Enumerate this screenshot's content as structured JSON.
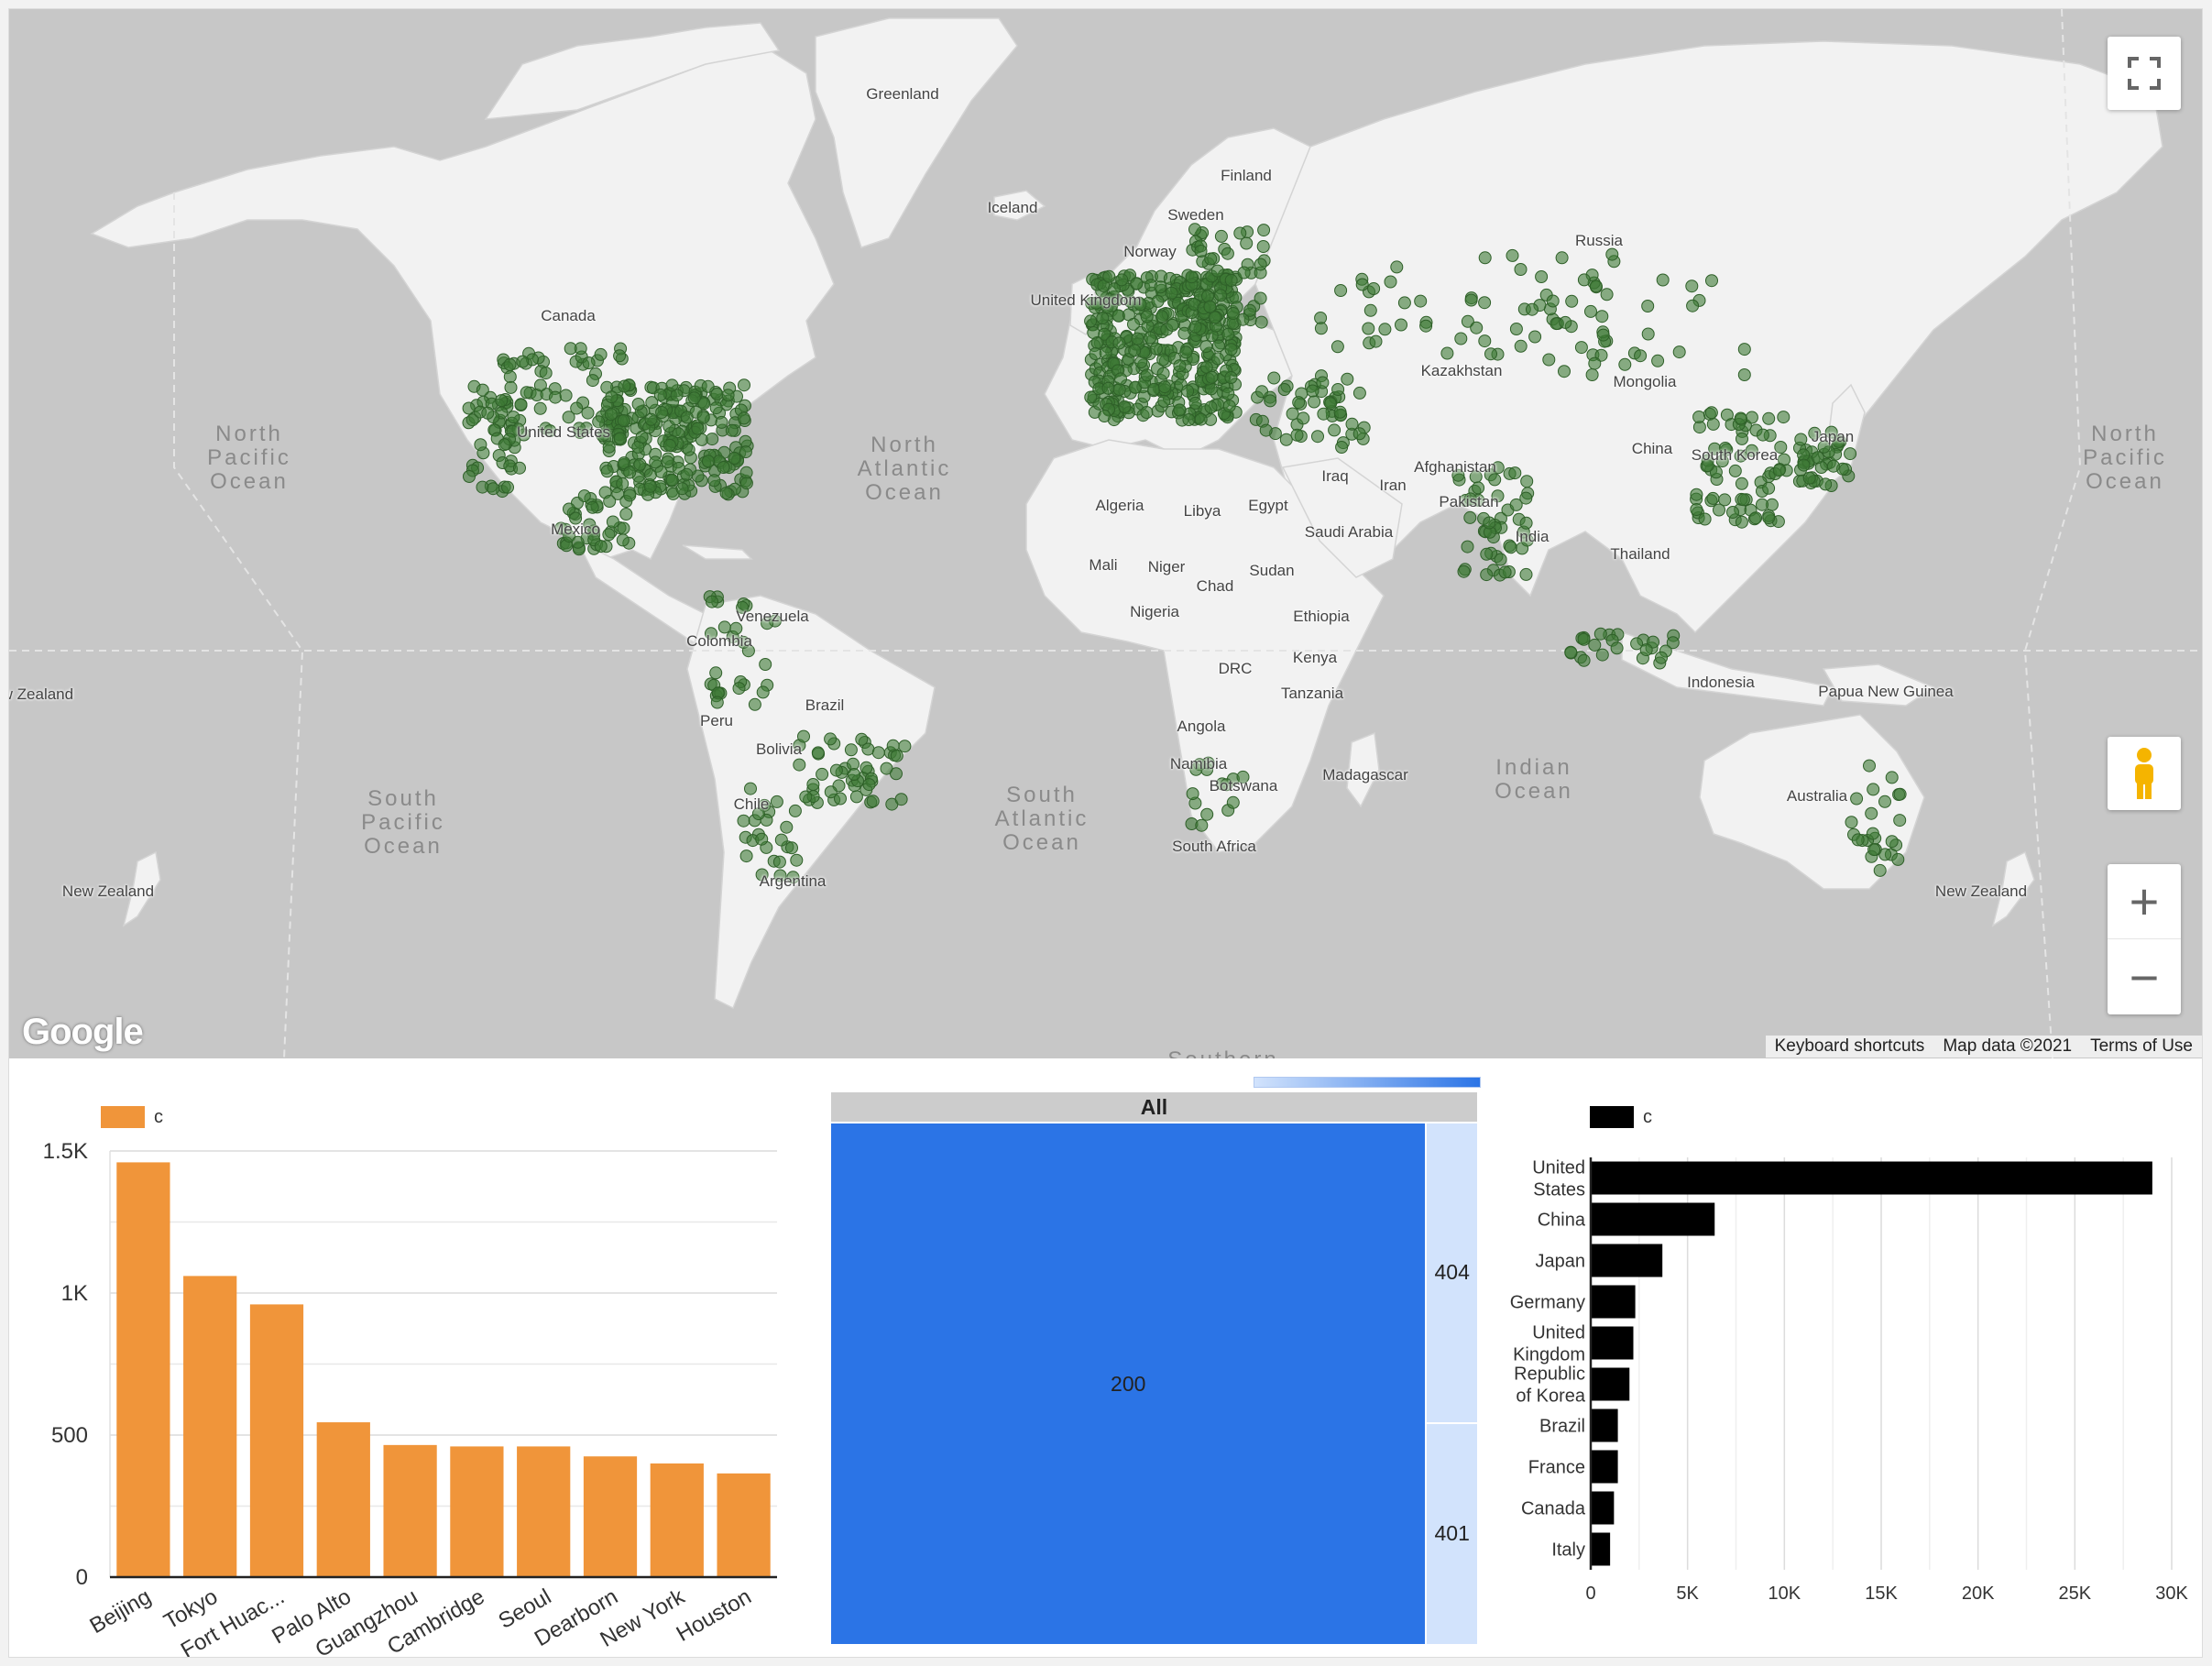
{
  "map": {
    "labels": [
      {
        "text": "Greenland",
        "x": 975,
        "y": 93
      },
      {
        "text": "Iceland",
        "x": 1095,
        "y": 217
      },
      {
        "text": "Finland",
        "x": 1350,
        "y": 182
      },
      {
        "text": "Sweden",
        "x": 1295,
        "y": 225
      },
      {
        "text": "Norway",
        "x": 1245,
        "y": 265
      },
      {
        "text": "United Kingdom",
        "x": 1175,
        "y": 318
      },
      {
        "text": "Russia",
        "x": 1735,
        "y": 253
      },
      {
        "text": "Kazakhstan",
        "x": 1585,
        "y": 395
      },
      {
        "text": "Mongolia",
        "x": 1785,
        "y": 407
      },
      {
        "text": "Canada",
        "x": 610,
        "y": 335
      },
      {
        "text": "United States",
        "x": 605,
        "y": 462
      },
      {
        "text": "Mexico",
        "x": 618,
        "y": 568
      },
      {
        "text": "Algeria",
        "x": 1212,
        "y": 542
      },
      {
        "text": "Libya",
        "x": 1302,
        "y": 548
      },
      {
        "text": "Egypt",
        "x": 1374,
        "y": 542
      },
      {
        "text": "Iraq",
        "x": 1447,
        "y": 510
      },
      {
        "text": "Iran",
        "x": 1510,
        "y": 520
      },
      {
        "text": "Afghanistan",
        "x": 1578,
        "y": 500
      },
      {
        "text": "Pakistan",
        "x": 1593,
        "y": 538
      },
      {
        "text": "China",
        "x": 1793,
        "y": 480
      },
      {
        "text": "South Korea",
        "x": 1883,
        "y": 487
      },
      {
        "text": "Japan",
        "x": 1990,
        "y": 467
      },
      {
        "text": "Saudi Arabia",
        "x": 1462,
        "y": 571
      },
      {
        "text": "India",
        "x": 1662,
        "y": 576
      },
      {
        "text": "Thailand",
        "x": 1780,
        "y": 595
      },
      {
        "text": "Mali",
        "x": 1194,
        "y": 607
      },
      {
        "text": "Niger",
        "x": 1263,
        "y": 609
      },
      {
        "text": "Chad",
        "x": 1316,
        "y": 630
      },
      {
        "text": "Sudan",
        "x": 1378,
        "y": 613
      },
      {
        "text": "Nigeria",
        "x": 1250,
        "y": 658
      },
      {
        "text": "Ethiopia",
        "x": 1432,
        "y": 663
      },
      {
        "text": "Venezuela",
        "x": 833,
        "y": 663
      },
      {
        "text": "Colombia",
        "x": 775,
        "y": 690
      },
      {
        "text": "Kenya",
        "x": 1425,
        "y": 708
      },
      {
        "text": "DRC",
        "x": 1338,
        "y": 720
      },
      {
        "text": "Tanzania",
        "x": 1422,
        "y": 747
      },
      {
        "text": "Brazil",
        "x": 890,
        "y": 760
      },
      {
        "text": "Peru",
        "x": 772,
        "y": 777
      },
      {
        "text": "Indonesia",
        "x": 1868,
        "y": 735
      },
      {
        "text": "Papua New Guinea",
        "x": 2048,
        "y": 745
      },
      {
        "text": "Angola",
        "x": 1301,
        "y": 783
      },
      {
        "text": "Bolivia",
        "x": 840,
        "y": 808
      },
      {
        "text": "Namibia",
        "x": 1298,
        "y": 824
      },
      {
        "text": "Botswana",
        "x": 1347,
        "y": 848
      },
      {
        "text": "Madagascar",
        "x": 1480,
        "y": 836
      },
      {
        "text": "Australia",
        "x": 1973,
        "y": 859
      },
      {
        "text": "Chile",
        "x": 810,
        "y": 868
      },
      {
        "text": "South Africa",
        "x": 1315,
        "y": 914
      },
      {
        "text": "Argentina",
        "x": 855,
        "y": 952
      },
      {
        "text": "New Zealand",
        "x": 108,
        "y": 963
      },
      {
        "text": "New Zealand",
        "x": 2152,
        "y": 963
      },
      {
        "text": "New Zealand",
        "x": 20,
        "y": 748
      }
    ],
    "oceans": [
      {
        "text": "North\nPacific\nOcean",
        "x": 262,
        "y": 490
      },
      {
        "text": "North\nAtlantic\nOcean",
        "x": 977,
        "y": 502
      },
      {
        "text": "North\nPacific\nOcean",
        "x": 2309,
        "y": 490
      },
      {
        "text": "South\nPacific\nOcean",
        "x": 430,
        "y": 888
      },
      {
        "text": "South\nAtlantic\nOcean",
        "x": 1127,
        "y": 884
      },
      {
        "text": "Indian\nOcean",
        "x": 1664,
        "y": 841
      },
      {
        "text": "Southern",
        "x": 1325,
        "y": 1147
      }
    ],
    "google_logo": "Google",
    "attribution": [
      "Keyboard shortcuts",
      "Map data ©2021",
      "Terms of Use"
    ],
    "controls": {
      "fullscreen": "fullscreen-icon",
      "pegman": "pegman-icon",
      "zoom_in": "+",
      "zoom_out": "−"
    },
    "marker_color": "#3d7a35"
  },
  "chart_data": [
    {
      "type": "bar",
      "legend": "c",
      "color": "#f0953a",
      "categories": [
        "Beijing",
        "Tokyo",
        "Fort Huac...",
        "Palo Alto",
        "Guangzhou",
        "Cambridge",
        "Seoul",
        "Dearborn",
        "New York",
        "Houston"
      ],
      "values": [
        1460,
        1060,
        960,
        545,
        465,
        460,
        460,
        425,
        400,
        365
      ],
      "ylim": [
        0,
        1500
      ],
      "yticks": [
        {
          "v": 0,
          "label": "0"
        },
        {
          "v": 500,
          "label": "500"
        },
        {
          "v": 1000,
          "label": "1K"
        },
        {
          "v": 1500,
          "label": "1.5K"
        }
      ],
      "grid": true
    },
    {
      "type": "treemap",
      "root": "All",
      "cells": [
        {
          "label": "200",
          "value": 92,
          "color": "#2b74e6"
        },
        {
          "label": "404",
          "value": 4.6,
          "color": "#d2e3fc"
        },
        {
          "label": "401",
          "value": 3.4,
          "color": "#d2e3fc"
        }
      ]
    },
    {
      "type": "bar",
      "orientation": "horizontal",
      "legend": "c",
      "color": "#000000",
      "categories": [
        [
          "United",
          "States"
        ],
        [
          "China"
        ],
        [
          "Japan"
        ],
        [
          "Germany"
        ],
        [
          "United",
          "Kingdom"
        ],
        [
          "Republic",
          "of Korea"
        ],
        [
          "Brazil"
        ],
        [
          "France"
        ],
        [
          "Canada"
        ],
        [
          "Italy"
        ]
      ],
      "values": [
        29000,
        6400,
        3700,
        2300,
        2200,
        2000,
        1400,
        1400,
        1200,
        1000
      ],
      "xlim": [
        0,
        30000
      ],
      "xticks": [
        {
          "v": 0,
          "label": "0"
        },
        {
          "v": 5000,
          "label": "5K"
        },
        {
          "v": 10000,
          "label": "10K"
        },
        {
          "v": 15000,
          "label": "15K"
        },
        {
          "v": 20000,
          "label": "20K"
        },
        {
          "v": 25000,
          "label": "25K"
        },
        {
          "v": 30000,
          "label": "30K"
        }
      ],
      "grid": true
    }
  ]
}
